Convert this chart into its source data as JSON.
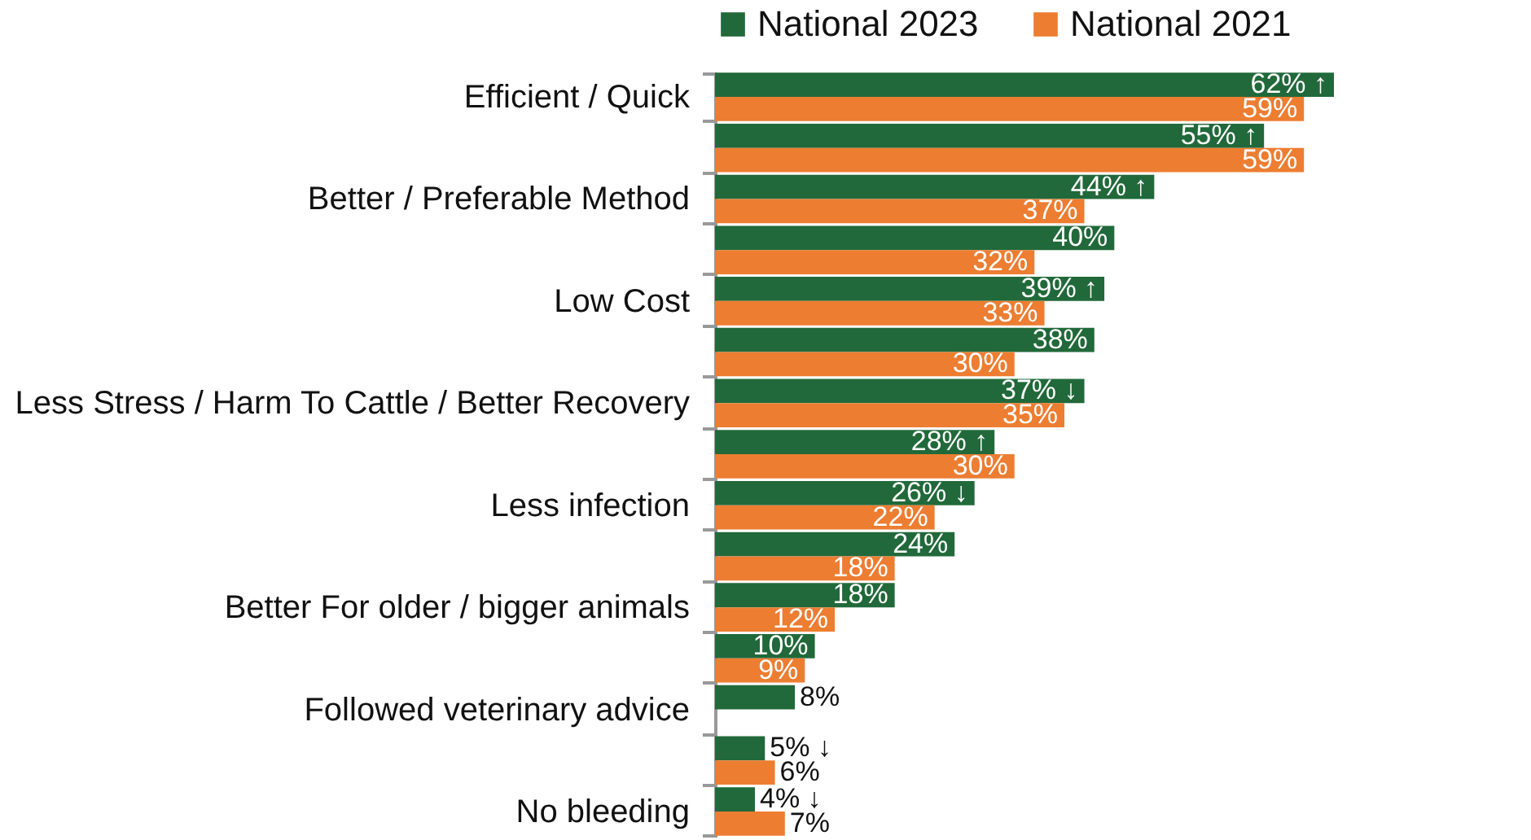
{
  "chart_data": {
    "type": "bar",
    "orientation": "horizontal",
    "legend": "top",
    "categories": [
      "Efficient / Quick",
      null,
      "Better / Preferable Method",
      null,
      "Low Cost",
      null,
      "Less Stress / Harm To Cattle / Better Recovery",
      null,
      "Less infection",
      null,
      "Better For older / bigger animals",
      null,
      "Followed veterinary advice",
      null,
      "No bleeding"
    ],
    "xlim": [
      0,
      62
    ],
    "series": [
      {
        "name": "National 2023",
        "color": "#21693a",
        "values": [
          62,
          55,
          44,
          40,
          39,
          38,
          37,
          28,
          26,
          24,
          18,
          10,
          8,
          5,
          4
        ],
        "value_labels": [
          "62% ↑",
          "55% ↑",
          "44% ↑",
          "40%",
          "39% ↑",
          "38%",
          "37% ↓",
          "28% ↑",
          "26% ↓",
          "24%",
          "18%",
          "10%",
          "8%",
          "5% ↓",
          "4% ↓"
        ]
      },
      {
        "name": "National 2021",
        "color": "#ed7d31",
        "values": [
          59,
          59,
          37,
          32,
          33,
          30,
          35,
          30,
          22,
          18,
          12,
          9,
          null,
          6,
          7
        ],
        "value_labels": [
          "59%",
          "59%",
          "37%",
          "32%",
          "33%",
          "30%",
          "35%",
          "30%",
          "22%",
          "18%",
          "12%",
          "9%",
          null,
          "6%",
          "7%"
        ]
      }
    ]
  }
}
